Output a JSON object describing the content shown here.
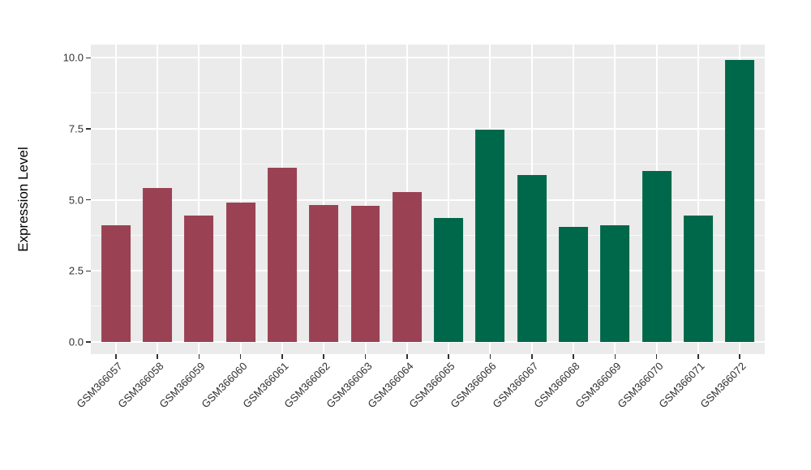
{
  "chart_data": {
    "type": "bar",
    "title": "",
    "xlabel": "",
    "ylabel": "Expression Level",
    "categories": [
      "GSM366057",
      "GSM366058",
      "GSM366059",
      "GSM366060",
      "GSM366061",
      "GSM366062",
      "GSM366063",
      "GSM366064",
      "GSM366065",
      "GSM366066",
      "GSM366067",
      "GSM366068",
      "GSM366069",
      "GSM366070",
      "GSM366071",
      "GSM366072"
    ],
    "values": [
      4.12,
      5.41,
      4.46,
      4.9,
      6.12,
      4.83,
      4.79,
      5.27,
      4.37,
      7.48,
      5.89,
      4.04,
      4.12,
      6.03,
      4.44,
      9.93
    ],
    "bar_colors": [
      "#9A4253",
      "#9A4253",
      "#9A4253",
      "#9A4253",
      "#9A4253",
      "#9A4253",
      "#9A4253",
      "#9A4253",
      "#00684A",
      "#00684A",
      "#00684A",
      "#00684A",
      "#00684A",
      "#00684A",
      "#00684A",
      "#00684A"
    ],
    "group_colors": {
      "maroon_group": "#9A4253",
      "green_group": "#00684A"
    },
    "y_ticks": [
      0,
      2.5,
      5,
      7.5,
      10
    ],
    "y_tick_labels": [
      "0.0",
      "2.5",
      "5.0",
      "7.5",
      "10.0"
    ],
    "y_minor_ticks": [
      1.25,
      3.75,
      6.25,
      8.75
    ],
    "ylim": [
      -0.43,
      10.47
    ],
    "grid": "white major+minor horizontal and vertical lines on gray panel",
    "legend": "none",
    "panel_background": "#EBEBEB"
  }
}
